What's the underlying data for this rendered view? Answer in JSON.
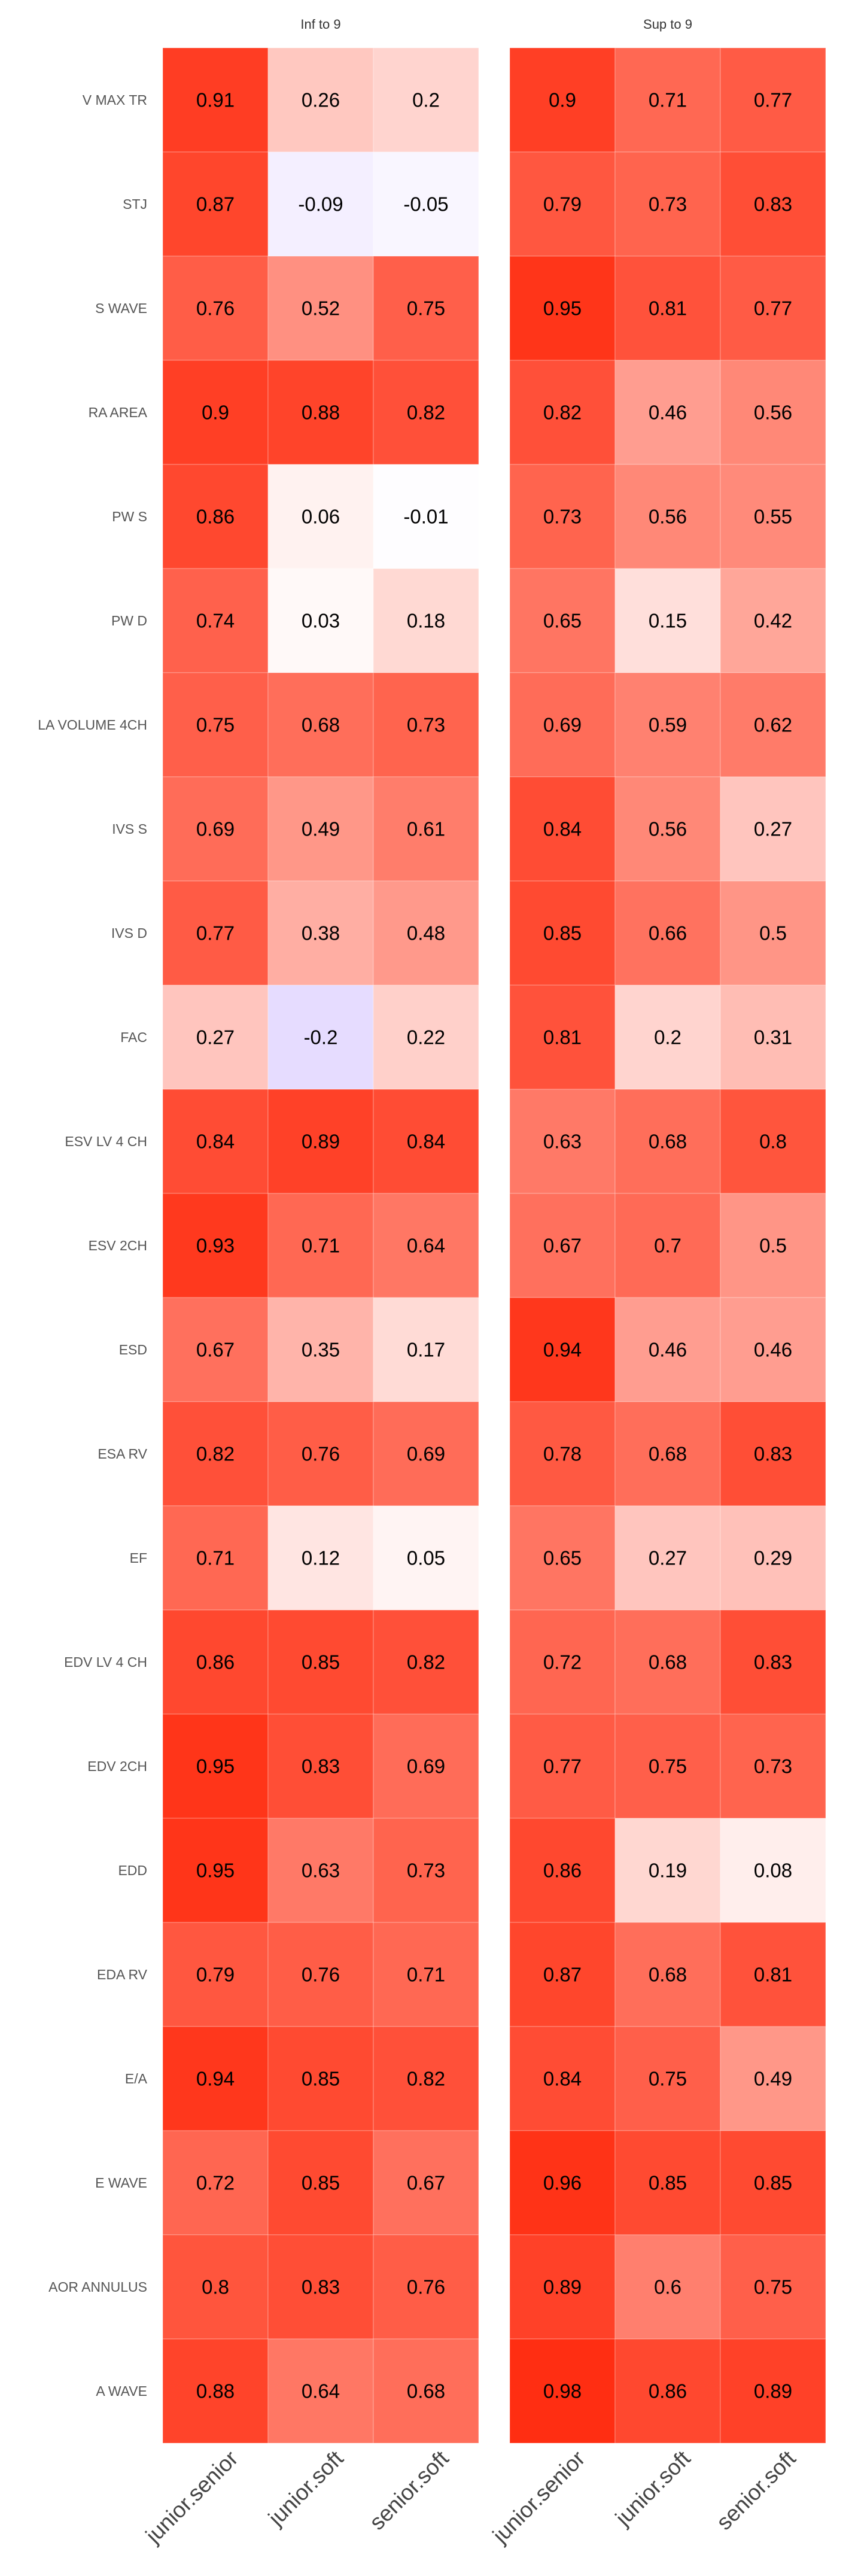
{
  "chart_data": {
    "type": "heatmap",
    "scale": {
      "low": "#d9cbff",
      "mid": "#ffffff",
      "high": "#ff2a0d",
      "min": -0.3,
      "max": 1.0
    },
    "row_labels": [
      "V MAX TR",
      "STJ",
      "S WAVE",
      "RA AREA",
      "PW S",
      "PW D",
      "LA VOLUME 4CH",
      "IVS S",
      "IVS D",
      "FAC",
      "ESV LV 4 CH",
      "ESV 2CH",
      "ESD",
      "ESA RV",
      "EF",
      "EDV LV 4 CH",
      "EDV 2CH",
      "EDD",
      "EDA RV",
      "E/A",
      "E WAVE",
      "AOR ANNULUS",
      "A WAVE"
    ],
    "col_labels": [
      "junior.senior",
      "junior.soft",
      "senior.soft"
    ],
    "panels": [
      {
        "title": "Inf to 9",
        "values": [
          [
            0.91,
            0.26,
            0.2
          ],
          [
            0.87,
            -0.09,
            -0.05
          ],
          [
            0.76,
            0.52,
            0.75
          ],
          [
            0.9,
            0.88,
            0.82
          ],
          [
            0.86,
            0.06,
            -0.01
          ],
          [
            0.74,
            0.03,
            0.18
          ],
          [
            0.75,
            0.68,
            0.73
          ],
          [
            0.69,
            0.49,
            0.61
          ],
          [
            0.77,
            0.38,
            0.48
          ],
          [
            0.27,
            -0.2,
            0.22
          ],
          [
            0.84,
            0.89,
            0.84
          ],
          [
            0.93,
            0.71,
            0.64
          ],
          [
            0.67,
            0.35,
            0.17
          ],
          [
            0.82,
            0.76,
            0.69
          ],
          [
            0.71,
            0.12,
            0.05
          ],
          [
            0.86,
            0.85,
            0.82
          ],
          [
            0.95,
            0.83,
            0.69
          ],
          [
            0.95,
            0.63,
            0.73
          ],
          [
            0.79,
            0.76,
            0.71
          ],
          [
            0.94,
            0.85,
            0.82
          ],
          [
            0.72,
            0.85,
            0.67
          ],
          [
            0.8,
            0.83,
            0.76
          ],
          [
            0.88,
            0.64,
            0.68
          ]
        ]
      },
      {
        "title": "Sup to 9",
        "values": [
          [
            0.9,
            0.71,
            0.77
          ],
          [
            0.79,
            0.73,
            0.83
          ],
          [
            0.95,
            0.81,
            0.77
          ],
          [
            0.82,
            0.46,
            0.56
          ],
          [
            0.73,
            0.56,
            0.55
          ],
          [
            0.65,
            0.15,
            0.42
          ],
          [
            0.69,
            0.59,
            0.62
          ],
          [
            0.84,
            0.56,
            0.27
          ],
          [
            0.85,
            0.66,
            0.5
          ],
          [
            0.81,
            0.2,
            0.31
          ],
          [
            0.63,
            0.68,
            0.8
          ],
          [
            0.67,
            0.7,
            0.5
          ],
          [
            0.94,
            0.46,
            0.46
          ],
          [
            0.78,
            0.68,
            0.83
          ],
          [
            0.65,
            0.27,
            0.29
          ],
          [
            0.72,
            0.68,
            0.83
          ],
          [
            0.77,
            0.75,
            0.73
          ],
          [
            0.86,
            0.19,
            0.08
          ],
          [
            0.87,
            0.68,
            0.81
          ],
          [
            0.84,
            0.75,
            0.49
          ],
          [
            0.96,
            0.85,
            0.85
          ],
          [
            0.89,
            0.6,
            0.75
          ],
          [
            0.98,
            0.86,
            0.89
          ]
        ]
      }
    ]
  }
}
